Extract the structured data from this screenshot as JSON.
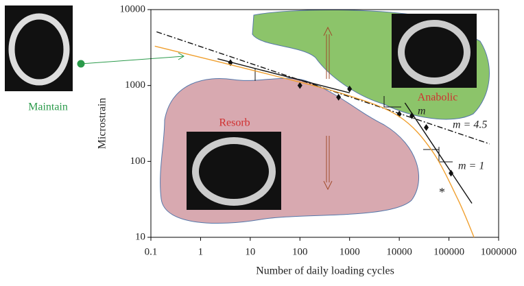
{
  "chart_data": {
    "type": "scatter",
    "xlabel": "Number of daily loading cycles",
    "ylabel": "Microstrain",
    "xscale": "log",
    "yscale": "log",
    "xlim": [
      0.1,
      1000000
    ],
    "ylim": [
      10,
      10000
    ],
    "xticks": [
      0.1,
      1,
      10,
      100,
      1000,
      10000,
      100000,
      1000000
    ],
    "yticks": [
      10,
      100,
      1000,
      10000
    ],
    "series": [
      {
        "style": "points",
        "color": "#111",
        "x": [
          4,
          100,
          600,
          1000,
          10000,
          18000,
          35000,
          110000
        ],
        "values": [
          2000,
          1000,
          700,
          900,
          420,
          400,
          280,
          70
        ]
      },
      {
        "style": "dashdot",
        "color": "#111",
        "x": [
          0.13,
          660000
        ],
        "values": [
          5100,
          170
        ]
      },
      {
        "style": "curve",
        "color": "#f0a030",
        "x": [
          0.12,
          30,
          1000,
          10000,
          45000,
          150000,
          320000
        ],
        "values": [
          3300,
          1350,
          730,
          390,
          140,
          32,
          10
        ]
      },
      {
        "style": "solid",
        "color": "#111",
        "x": [
          2.2,
          1000
        ],
        "values": [
          2250,
          800
        ]
      },
      {
        "style": "solid",
        "color": "#111",
        "x": [
          13000,
          290000
        ],
        "values": [
          590,
          28
        ]
      }
    ],
    "annotations": {
      "maintain": "Maintain",
      "resorb": "Resorb",
      "anabolic": "Anabolic",
      "m45": "m = 4.5",
      "m1": "m = 1",
      "m": "m",
      "star": "*"
    }
  }
}
